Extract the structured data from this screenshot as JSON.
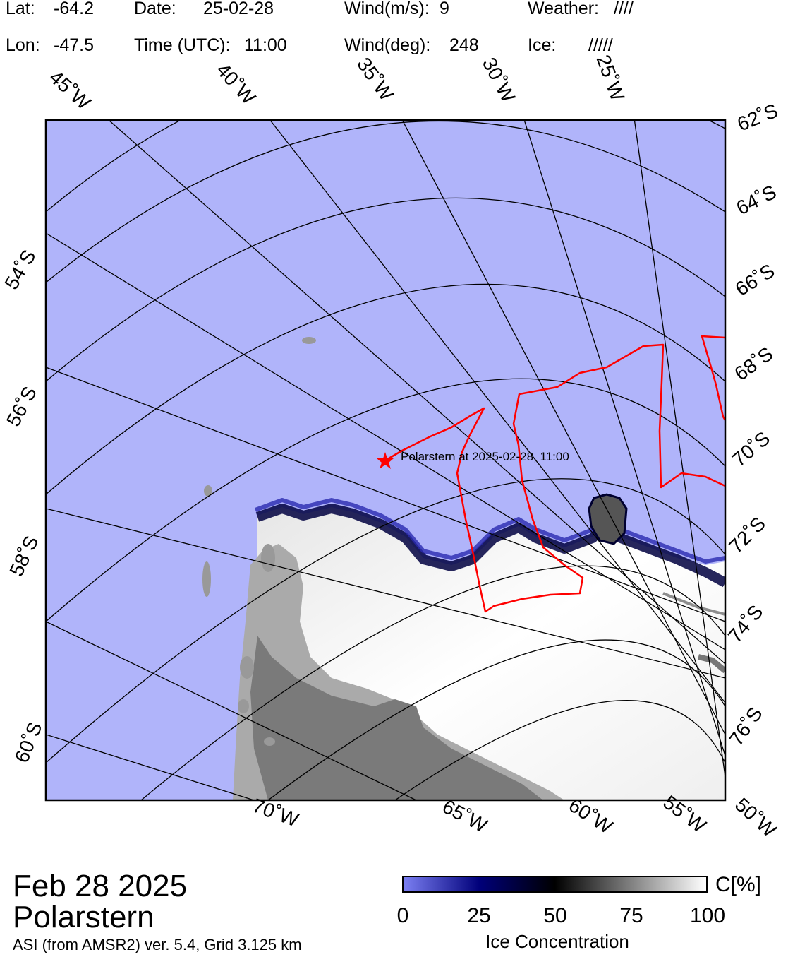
{
  "header": {
    "lat_label": "Lat:",
    "lat_value": "-64.2",
    "lon_label": "Lon:",
    "lon_value": "-47.5",
    "date_label": "Date:",
    "date_value": "25-02-28",
    "time_label": "Time (UTC):",
    "time_value": "11:00",
    "wind_speed_label": "Wind(m/s):",
    "wind_speed_value": "9",
    "wind_dir_label": "Wind(deg):",
    "wind_dir_value": "248",
    "weather_label": "Weather:",
    "weather_value": "////",
    "ice_label": "Ice:",
    "ice_value": "/////"
  },
  "map": {
    "longitude_labels": [
      "45˚W",
      "40˚W",
      "35˚W",
      "30˚W",
      "25˚W",
      "70˚W",
      "65˚W",
      "60˚W",
      "55˚W",
      "50˚W"
    ],
    "latitude_labels": [
      "62˚S",
      "64˚S",
      "66˚S",
      "68˚S",
      "70˚S",
      "72˚S",
      "74˚S",
      "76˚S",
      "54˚S",
      "56˚S",
      "58˚S",
      "60˚S"
    ],
    "ship_label": "Polarstern at 2025-02-28, 11:00",
    "colors": {
      "ocean": "#b0b4fa",
      "land": "#999999",
      "land_dark": "#7a7a7a",
      "ice": "#f4f4f4",
      "track": "#ff0000",
      "ship": "#ff0000",
      "grid": "#000000"
    }
  },
  "footer": {
    "title_date": "Feb 28 2025",
    "title_ship": "Polarstern",
    "subtitle": "ASI (from AMSR2) ver. 5.4,  Grid 3.125 km"
  },
  "colorbar": {
    "ticks": [
      "0",
      "25",
      "50",
      "75",
      "100"
    ],
    "unit": "C[%]",
    "label": "Ice Concentration",
    "stops": [
      "#7b7ff2",
      "#00007a",
      "#000000",
      "#808080",
      "#ffffff"
    ]
  }
}
